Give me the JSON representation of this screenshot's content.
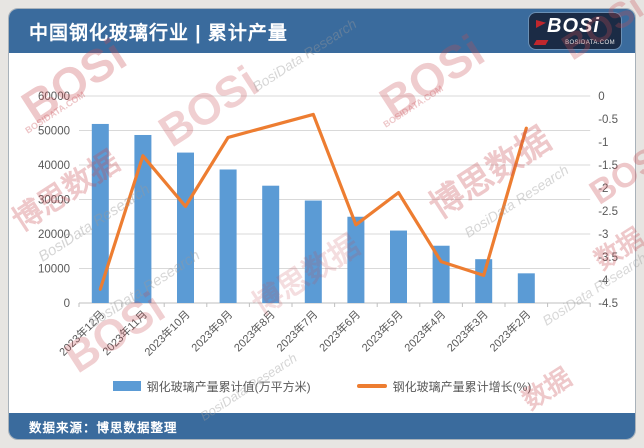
{
  "header": {
    "title": "中国钢化玻璃行业 | 累计产量",
    "logo_text": "BOSi",
    "logo_subtext": "BOSIDATA.COM"
  },
  "footer": {
    "source": "数据来源：博思数据整理"
  },
  "watermark": {
    "texts": [
      "BOSi",
      "博思数据",
      "BosiData Research",
      "BOSIDATA.COM",
      "数据"
    ]
  },
  "colors": {
    "bar": "#5B9BD5",
    "line": "#ED7D31",
    "header_bg": "#3A6B9D",
    "grid": "#D9D9D9",
    "axis_line": "#BFBFBF",
    "axis_text": "#595959",
    "logo_bg": "#1B2B45",
    "logo_accent": "#C0272D"
  },
  "chart_data": {
    "type": "bar+line",
    "title": "中国钢化玻璃行业 | 累计产量",
    "categories": [
      "2023年12月",
      "2023年11月",
      "2023年10月",
      "2023年9月",
      "2023年8月",
      "2023年7月",
      "2023年6月",
      "2023年5月",
      "2023年4月",
      "2023年3月",
      "2023年2月"
    ],
    "series": [
      {
        "name": "钢化玻璃产量累计值(万平方米)",
        "type": "bar",
        "axis": "left",
        "color": "#5B9BD5",
        "values": [
          51900,
          48700,
          43600,
          38700,
          34000,
          29700,
          25000,
          21000,
          16600,
          12700,
          8600
        ]
      },
      {
        "name": "钢化玻璃产量累计增长(%)",
        "type": "line",
        "axis": "right",
        "color": "#ED7D31",
        "values": [
          -4.2,
          -1.3,
          -2.4,
          -0.9,
          -0.65,
          -0.4,
          -2.8,
          -2.1,
          -3.6,
          -3.9,
          -0.7
        ]
      }
    ],
    "left_axis": {
      "min": 0,
      "max": 60000,
      "step": 10000,
      "tick_labels": [
        "0",
        "10000",
        "20000",
        "30000",
        "40000",
        "50000",
        "60000"
      ]
    },
    "right_axis": {
      "min": -4.5,
      "max": 0,
      "step": 0.5,
      "tick_labels": [
        "0",
        "-0.5",
        "-1",
        "-1.5",
        "-2",
        "-2.5",
        "-3",
        "-3.5",
        "-4",
        "-4.5"
      ]
    },
    "grid": true,
    "legend_position": "bottom"
  }
}
